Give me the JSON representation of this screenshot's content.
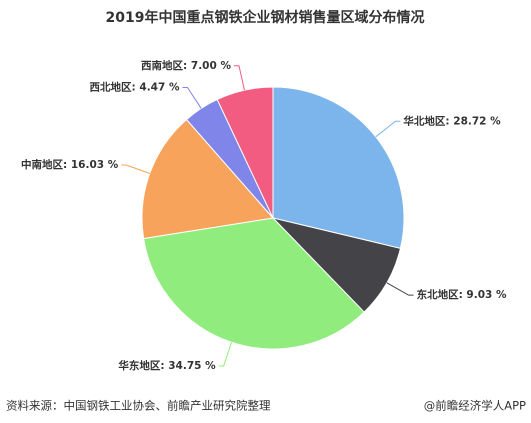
{
  "chart_data": {
    "type": "pie",
    "title": "2019年中国重点钢铁企业钢材销售量区域分布情况",
    "values": [
      28.72,
      9.03,
      34.75,
      16.03,
      4.47,
      7.0
    ],
    "value_labels": [
      "华北地区: 28.72 %",
      "东北地区: 9.03 %",
      "华东地区: 34.75 %",
      "中南地区: 16.03 %",
      "西北地区: 4.47 %",
      "西南地区: 7.00 %"
    ],
    "colors": [
      "#7cb5ec",
      "#434348",
      "#90ed7d",
      "#f7a35c",
      "#8085e9",
      "#f15c80"
    ],
    "source": "资料来源：中国钢铁工业协会、前瞻产业研究院整理",
    "credit": "@前瞻经济学人APP"
  }
}
